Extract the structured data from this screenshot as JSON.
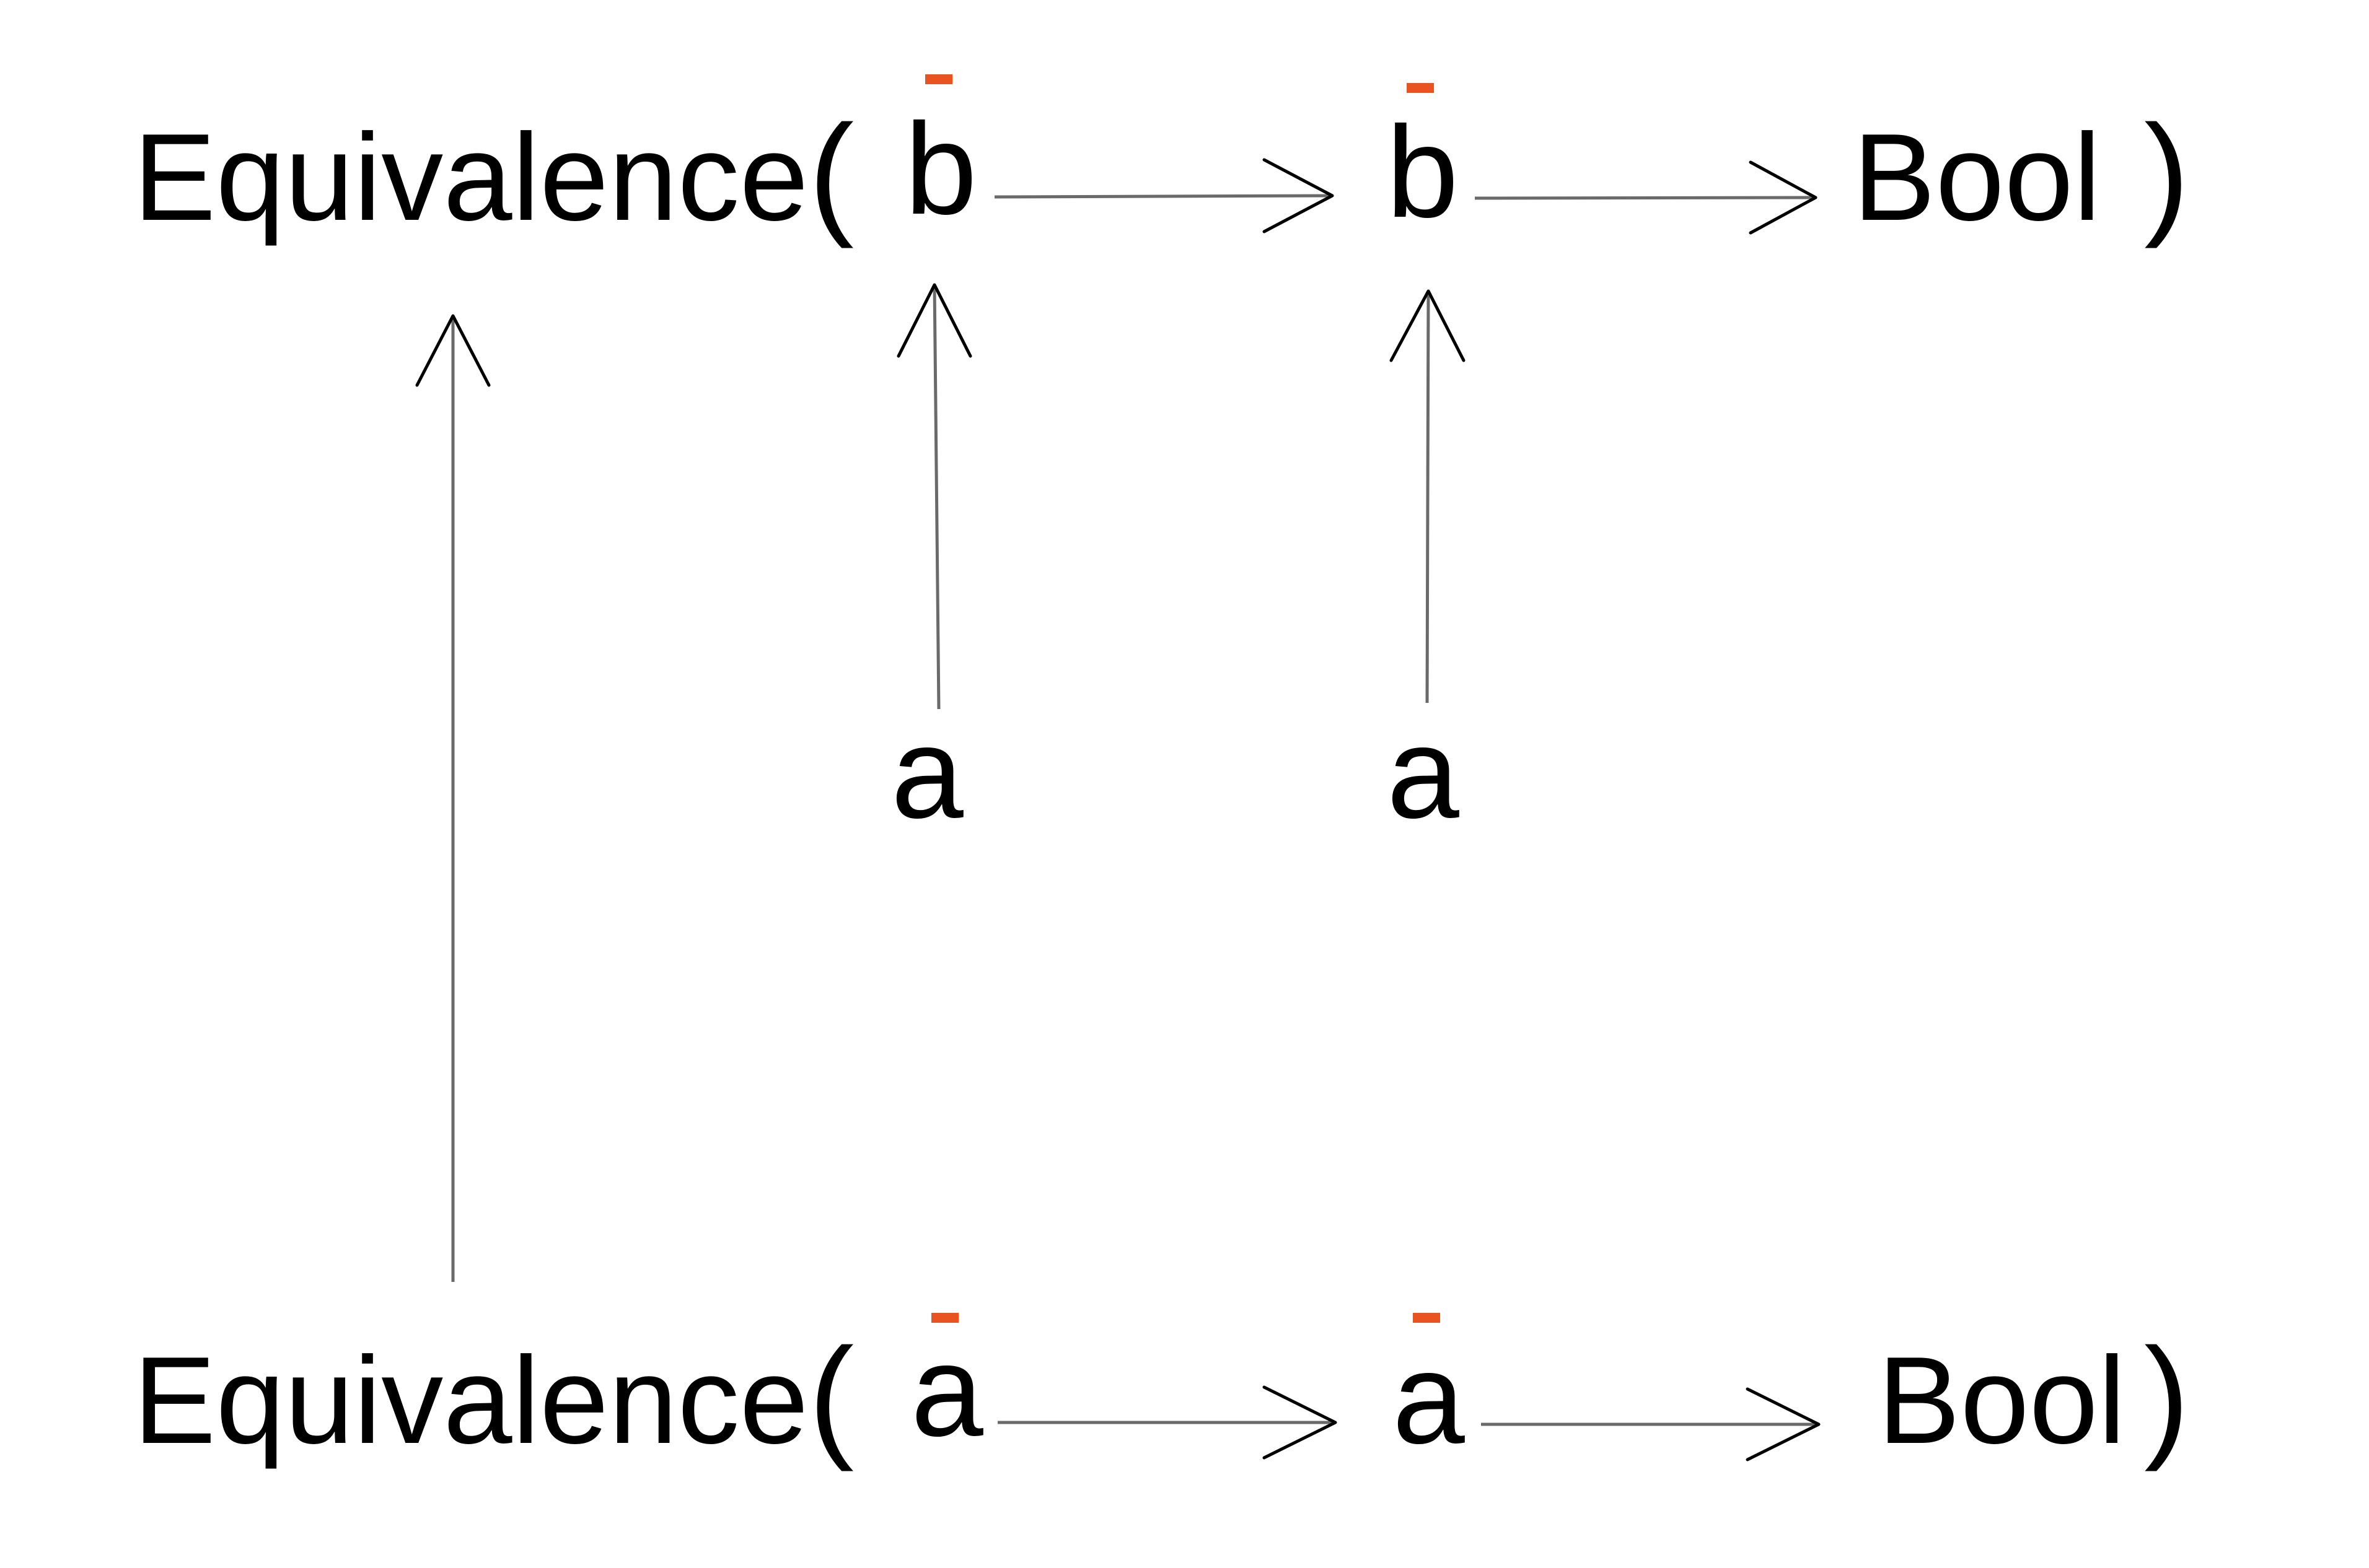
{
  "colors": {
    "text": "#000000",
    "arrow_shaft": "#6a6a6a",
    "arrow_head": "#000000",
    "accent_bar": "#e8531f",
    "background": "#ffffff"
  },
  "top_row": {
    "prefix": "Equivalence",
    "open_paren": "(",
    "first_symbol": "b",
    "second_symbol": "b",
    "result": "Bool",
    "close_paren": ")"
  },
  "bottom_row": {
    "prefix": "Equivalence",
    "open_paren": "(",
    "first_symbol": "a",
    "second_symbol": "a",
    "result": "Bool",
    "close_paren": ")"
  },
  "middle_row": {
    "left_symbol": "a",
    "right_symbol": "a"
  }
}
